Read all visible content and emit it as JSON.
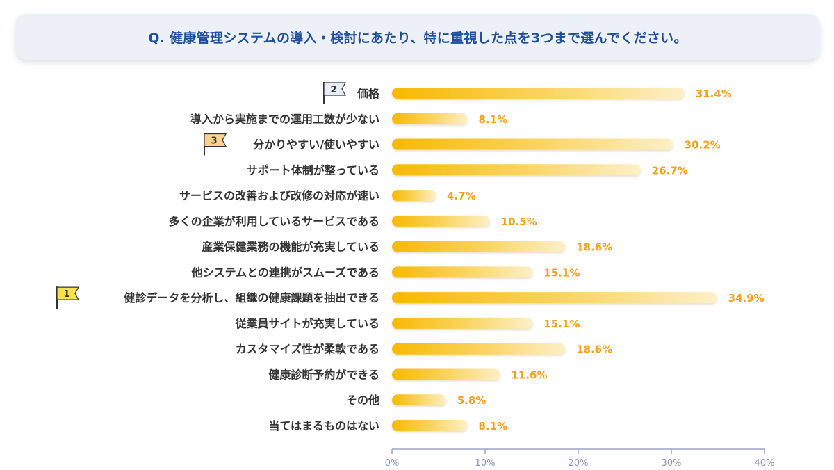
{
  "question": "Q. 健康管理システムの導入・検討にあたり、特に重視した点を3つまで選んでください。",
  "colors": {
    "bar_start": "#f7b900",
    "bar_end": "#fdf0c8",
    "value_text": "#f4a01a",
    "axis": "#9aa3c4",
    "title": "#1f4f9c",
    "rank1_flag": "#f6e24a",
    "rank2_flag": "#e8ecf7",
    "rank3_flag": "#f9d38e"
  },
  "chart_data": {
    "type": "bar",
    "orientation": "horizontal",
    "categories": [
      "価格",
      "導入から実施までの運用工数が少ない",
      "分かりやすい/使いやすい",
      "サポート体制が整っている",
      "サービスの改善および改修の対応が速い",
      "多くの企業が利用しているサービスである",
      "産業保健業務の機能が充実している",
      "他システムとの連携がスムーズである",
      "健診データを分析し、組織の健康課題を抽出できる",
      "従業員サイトが充実している",
      "カスタマイズ性が柔軟である",
      "健康診断予約ができる",
      "その他",
      "当てはまるものはない"
    ],
    "values": [
      31.4,
      8.1,
      30.2,
      26.7,
      4.7,
      10.5,
      18.6,
      15.1,
      34.9,
      15.1,
      18.6,
      11.6,
      5.8,
      8.1
    ],
    "value_labels": [
      "31.4%",
      "8.1%",
      "30.2%",
      "26.7%",
      "4.7%",
      "10.5%",
      "18.6%",
      "15.1%",
      "34.9%",
      "15.1%",
      "18.6%",
      "11.6%",
      "5.8%",
      "8.1%"
    ],
    "ranks": [
      {
        "category_index": 8,
        "label": "1"
      },
      {
        "category_index": 0,
        "label": "2"
      },
      {
        "category_index": 2,
        "label": "3"
      }
    ],
    "xlim": [
      0,
      40
    ],
    "x_ticks": [
      0,
      10,
      20,
      30,
      40
    ],
    "x_tick_labels": [
      "0%",
      "10%",
      "20%",
      "30%",
      "40%"
    ],
    "grid": false,
    "legend": "none"
  }
}
